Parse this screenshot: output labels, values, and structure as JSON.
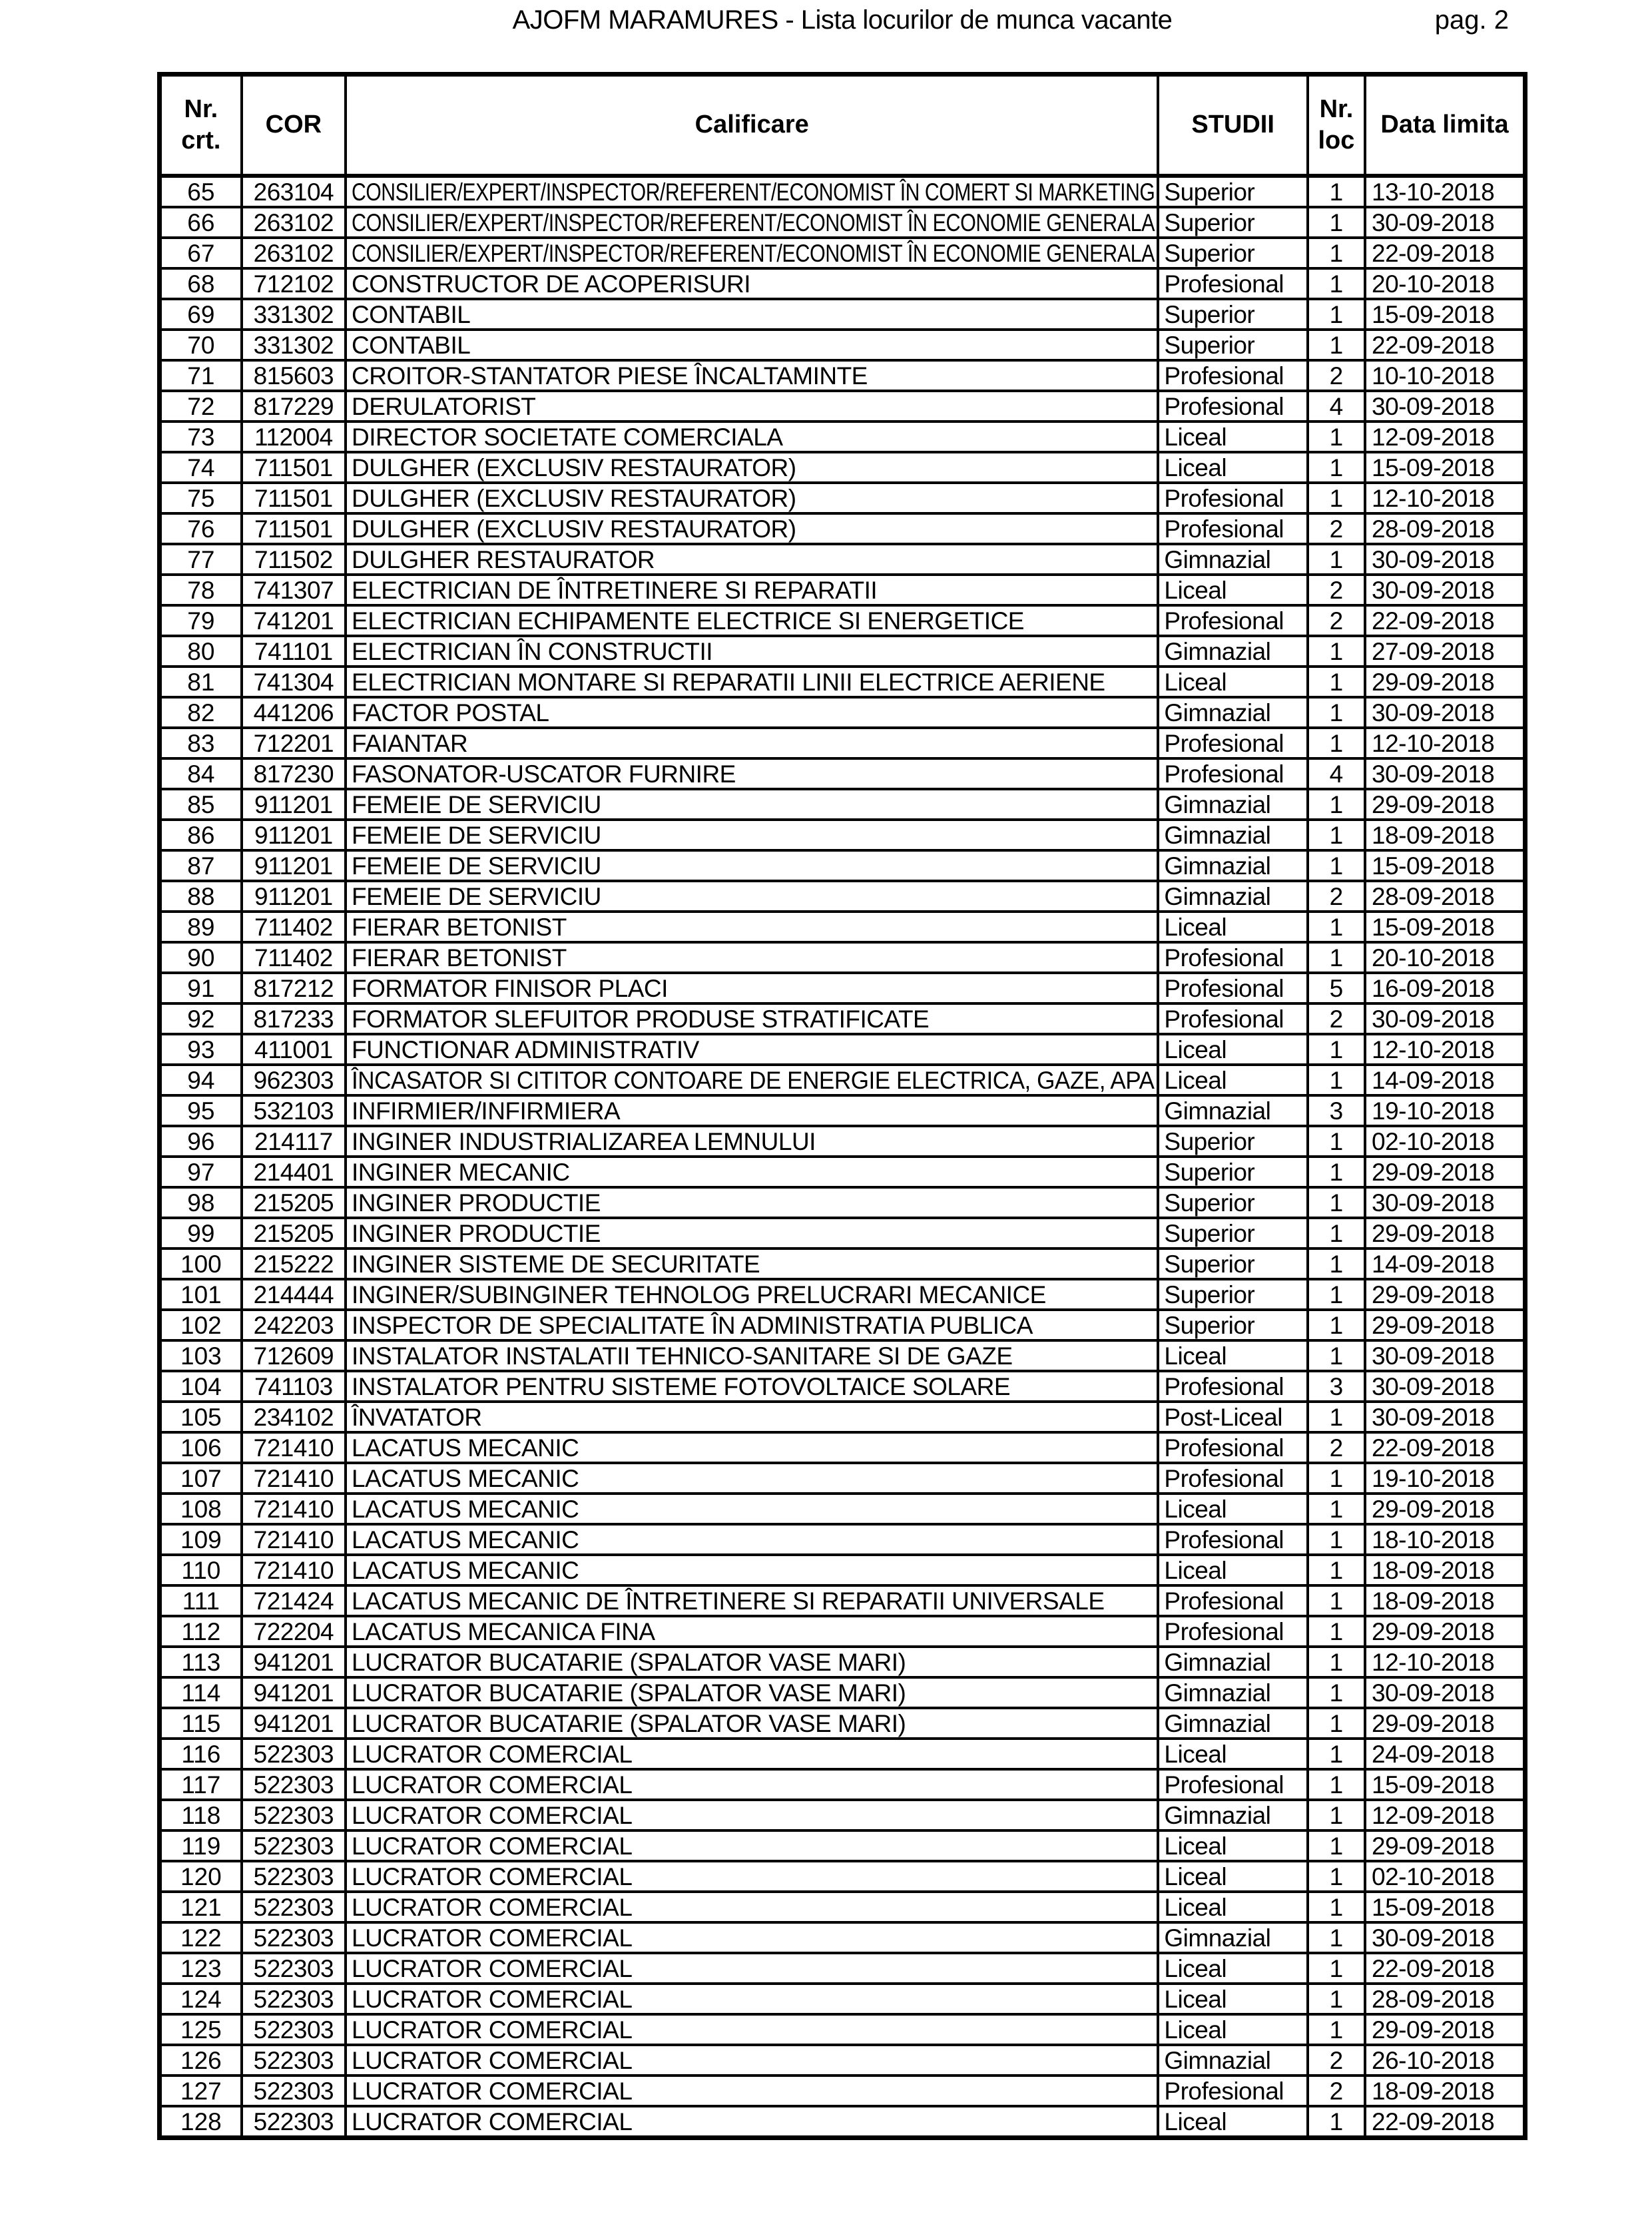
{
  "page": {
    "title": "AJOFM MARAMURES - Lista locurilor de munca vacante",
    "page_label": "pag. 2"
  },
  "table": {
    "columns": [
      "Nr. crt.",
      "COR",
      "Calificare",
      "STUDII",
      "Nr. loc",
      "Data limita"
    ],
    "rows": [
      {
        "nr": "65",
        "cor": "263104",
        "calificare": "CONSILIER/EXPERT/INSPECTOR/REFERENT/ECONOMIST ÎN COMERT SI MARKETING",
        "studii": "Superior",
        "loc": "1",
        "data": "13-10-2018"
      },
      {
        "nr": "66",
        "cor": "263102",
        "calificare": "CONSILIER/EXPERT/INSPECTOR/REFERENT/ECONOMIST ÎN ECONOMIE GENERALA",
        "studii": "Superior",
        "loc": "1",
        "data": "30-09-2018"
      },
      {
        "nr": "67",
        "cor": "263102",
        "calificare": "CONSILIER/EXPERT/INSPECTOR/REFERENT/ECONOMIST ÎN ECONOMIE GENERALA",
        "studii": "Superior",
        "loc": "1",
        "data": "22-09-2018"
      },
      {
        "nr": "68",
        "cor": "712102",
        "calificare": "CONSTRUCTOR DE ACOPERISURI",
        "studii": "Profesional",
        "loc": "1",
        "data": "20-10-2018"
      },
      {
        "nr": "69",
        "cor": "331302",
        "calificare": "CONTABIL",
        "studii": "Superior",
        "loc": "1",
        "data": "15-09-2018"
      },
      {
        "nr": "70",
        "cor": "331302",
        "calificare": "CONTABIL",
        "studii": "Superior",
        "loc": "1",
        "data": "22-09-2018"
      },
      {
        "nr": "71",
        "cor": "815603",
        "calificare": "CROITOR-STANTATOR PIESE ÎNCALTAMINTE",
        "studii": "Profesional",
        "loc": "2",
        "data": "10-10-2018"
      },
      {
        "nr": "72",
        "cor": "817229",
        "calificare": "DERULATORIST",
        "studii": "Profesional",
        "loc": "4",
        "data": "30-09-2018"
      },
      {
        "nr": "73",
        "cor": "112004",
        "calificare": "DIRECTOR SOCIETATE COMERCIALA",
        "studii": "Liceal",
        "loc": "1",
        "data": "12-09-2018"
      },
      {
        "nr": "74",
        "cor": "711501",
        "calificare": "DULGHER (EXCLUSIV RESTAURATOR)",
        "studii": "Liceal",
        "loc": "1",
        "data": "15-09-2018"
      },
      {
        "nr": "75",
        "cor": "711501",
        "calificare": "DULGHER (EXCLUSIV RESTAURATOR)",
        "studii": "Profesional",
        "loc": "1",
        "data": "12-10-2018"
      },
      {
        "nr": "76",
        "cor": "711501",
        "calificare": "DULGHER (EXCLUSIV RESTAURATOR)",
        "studii": "Profesional",
        "loc": "2",
        "data": "28-09-2018"
      },
      {
        "nr": "77",
        "cor": "711502",
        "calificare": "DULGHER RESTAURATOR",
        "studii": "Gimnazial",
        "loc": "1",
        "data": "30-09-2018"
      },
      {
        "nr": "78",
        "cor": "741307",
        "calificare": "ELECTRICIAN DE ÎNTRETINERE SI REPARATII",
        "studii": "Liceal",
        "loc": "2",
        "data": "30-09-2018"
      },
      {
        "nr": "79",
        "cor": "741201",
        "calificare": "ELECTRICIAN ECHIPAMENTE ELECTRICE SI ENERGETICE",
        "studii": "Profesional",
        "loc": "2",
        "data": "22-09-2018"
      },
      {
        "nr": "80",
        "cor": "741101",
        "calificare": "ELECTRICIAN ÎN CONSTRUCTII",
        "studii": "Gimnazial",
        "loc": "1",
        "data": "27-09-2018"
      },
      {
        "nr": "81",
        "cor": "741304",
        "calificare": "ELECTRICIAN MONTARE SI REPARATII LINII ELECTRICE AERIENE",
        "studii": "Liceal",
        "loc": "1",
        "data": "29-09-2018"
      },
      {
        "nr": "82",
        "cor": "441206",
        "calificare": "FACTOR POSTAL",
        "studii": "Gimnazial",
        "loc": "1",
        "data": "30-09-2018"
      },
      {
        "nr": "83",
        "cor": "712201",
        "calificare": "FAIANTAR",
        "studii": "Profesional",
        "loc": "1",
        "data": "12-10-2018"
      },
      {
        "nr": "84",
        "cor": "817230",
        "calificare": "FASONATOR-USCATOR FURNIRE",
        "studii": "Profesional",
        "loc": "4",
        "data": "30-09-2018"
      },
      {
        "nr": "85",
        "cor": "911201",
        "calificare": "FEMEIE DE SERVICIU",
        "studii": "Gimnazial",
        "loc": "1",
        "data": "29-09-2018"
      },
      {
        "nr": "86",
        "cor": "911201",
        "calificare": "FEMEIE DE SERVICIU",
        "studii": "Gimnazial",
        "loc": "1",
        "data": "18-09-2018"
      },
      {
        "nr": "87",
        "cor": "911201",
        "calificare": "FEMEIE DE SERVICIU",
        "studii": "Gimnazial",
        "loc": "1",
        "data": "15-09-2018"
      },
      {
        "nr": "88",
        "cor": "911201",
        "calificare": "FEMEIE DE SERVICIU",
        "studii": "Gimnazial",
        "loc": "2",
        "data": "28-09-2018"
      },
      {
        "nr": "89",
        "cor": "711402",
        "calificare": "FIERAR BETONIST",
        "studii": "Liceal",
        "loc": "1",
        "data": "15-09-2018"
      },
      {
        "nr": "90",
        "cor": "711402",
        "calificare": "FIERAR BETONIST",
        "studii": "Profesional",
        "loc": "1",
        "data": "20-10-2018"
      },
      {
        "nr": "91",
        "cor": "817212",
        "calificare": "FORMATOR FINISOR PLACI",
        "studii": "Profesional",
        "loc": "5",
        "data": "16-09-2018"
      },
      {
        "nr": "92",
        "cor": "817233",
        "calificare": "FORMATOR SLEFUITOR PRODUSE STRATIFICATE",
        "studii": "Profesional",
        "loc": "2",
        "data": "30-09-2018"
      },
      {
        "nr": "93",
        "cor": "411001",
        "calificare": "FUNCTIONAR ADMINISTRATIV",
        "studii": "Liceal",
        "loc": "1",
        "data": "12-10-2018"
      },
      {
        "nr": "94",
        "cor": "962303",
        "calificare": "ÎNCASATOR SI CITITOR CONTOARE DE ENERGIE ELECTRICA, GAZE, APA",
        "studii": "Liceal",
        "loc": "1",
        "data": "14-09-2018"
      },
      {
        "nr": "95",
        "cor": "532103",
        "calificare": "INFIRMIER/INFIRMIERA",
        "studii": "Gimnazial",
        "loc": "3",
        "data": "19-10-2018"
      },
      {
        "nr": "96",
        "cor": "214117",
        "calificare": "INGINER INDUSTRIALIZAREA LEMNULUI",
        "studii": "Superior",
        "loc": "1",
        "data": "02-10-2018"
      },
      {
        "nr": "97",
        "cor": "214401",
        "calificare": "INGINER MECANIC",
        "studii": "Superior",
        "loc": "1",
        "data": "29-09-2018"
      },
      {
        "nr": "98",
        "cor": "215205",
        "calificare": "INGINER PRODUCTIE",
        "studii": "Superior",
        "loc": "1",
        "data": "30-09-2018"
      },
      {
        "nr": "99",
        "cor": "215205",
        "calificare": "INGINER PRODUCTIE",
        "studii": "Superior",
        "loc": "1",
        "data": "29-09-2018"
      },
      {
        "nr": "100",
        "cor": "215222",
        "calificare": "INGINER SISTEME DE SECURITATE",
        "studii": "Superior",
        "loc": "1",
        "data": "14-09-2018"
      },
      {
        "nr": "101",
        "cor": "214444",
        "calificare": "INGINER/SUBINGINER TEHNOLOG PRELUCRARI MECANICE",
        "studii": "Superior",
        "loc": "1",
        "data": "29-09-2018"
      },
      {
        "nr": "102",
        "cor": "242203",
        "calificare": "INSPECTOR DE SPECIALITATE ÎN ADMINISTRATIA PUBLICA",
        "studii": "Superior",
        "loc": "1",
        "data": "29-09-2018"
      },
      {
        "nr": "103",
        "cor": "712609",
        "calificare": "INSTALATOR INSTALATII TEHNICO-SANITARE SI DE GAZE",
        "studii": "Liceal",
        "loc": "1",
        "data": "30-09-2018"
      },
      {
        "nr": "104",
        "cor": "741103",
        "calificare": "INSTALATOR PENTRU SISTEME FOTOVOLTAICE SOLARE",
        "studii": "Profesional",
        "loc": "3",
        "data": "30-09-2018"
      },
      {
        "nr": "105",
        "cor": "234102",
        "calificare": "ÎNVATATOR",
        "studii": "Post-Liceal",
        "loc": "1",
        "data": "30-09-2018"
      },
      {
        "nr": "106",
        "cor": "721410",
        "calificare": "LACATUS MECANIC",
        "studii": "Profesional",
        "loc": "2",
        "data": "22-09-2018"
      },
      {
        "nr": "107",
        "cor": "721410",
        "calificare": "LACATUS MECANIC",
        "studii": "Profesional",
        "loc": "1",
        "data": "19-10-2018"
      },
      {
        "nr": "108",
        "cor": "721410",
        "calificare": "LACATUS MECANIC",
        "studii": "Liceal",
        "loc": "1",
        "data": "29-09-2018"
      },
      {
        "nr": "109",
        "cor": "721410",
        "calificare": "LACATUS MECANIC",
        "studii": "Profesional",
        "loc": "1",
        "data": "18-10-2018"
      },
      {
        "nr": "110",
        "cor": "721410",
        "calificare": "LACATUS MECANIC",
        "studii": "Liceal",
        "loc": "1",
        "data": "18-09-2018"
      },
      {
        "nr": "111",
        "cor": "721424",
        "calificare": "LACATUS MECANIC DE ÎNTRETINERE SI REPARATII UNIVERSALE",
        "studii": "Profesional",
        "loc": "1",
        "data": "18-09-2018"
      },
      {
        "nr": "112",
        "cor": "722204",
        "calificare": "LACATUS MECANICA FINA",
        "studii": "Profesional",
        "loc": "1",
        "data": "29-09-2018"
      },
      {
        "nr": "113",
        "cor": "941201",
        "calificare": "LUCRATOR BUCATARIE (SPALATOR VASE MARI)",
        "studii": "Gimnazial",
        "loc": "1",
        "data": "12-10-2018"
      },
      {
        "nr": "114",
        "cor": "941201",
        "calificare": "LUCRATOR BUCATARIE (SPALATOR VASE MARI)",
        "studii": "Gimnazial",
        "loc": "1",
        "data": "30-09-2018"
      },
      {
        "nr": "115",
        "cor": "941201",
        "calificare": "LUCRATOR BUCATARIE (SPALATOR VASE MARI)",
        "studii": "Gimnazial",
        "loc": "1",
        "data": "29-09-2018"
      },
      {
        "nr": "116",
        "cor": "522303",
        "calificare": "LUCRATOR COMERCIAL",
        "studii": "Liceal",
        "loc": "1",
        "data": "24-09-2018"
      },
      {
        "nr": "117",
        "cor": "522303",
        "calificare": "LUCRATOR COMERCIAL",
        "studii": "Profesional",
        "loc": "1",
        "data": "15-09-2018"
      },
      {
        "nr": "118",
        "cor": "522303",
        "calificare": "LUCRATOR COMERCIAL",
        "studii": "Gimnazial",
        "loc": "1",
        "data": "12-09-2018"
      },
      {
        "nr": "119",
        "cor": "522303",
        "calificare": "LUCRATOR COMERCIAL",
        "studii": "Liceal",
        "loc": "1",
        "data": "29-09-2018"
      },
      {
        "nr": "120",
        "cor": "522303",
        "calificare": "LUCRATOR COMERCIAL",
        "studii": "Liceal",
        "loc": "1",
        "data": "02-10-2018"
      },
      {
        "nr": "121",
        "cor": "522303",
        "calificare": "LUCRATOR COMERCIAL",
        "studii": "Liceal",
        "loc": "1",
        "data": "15-09-2018"
      },
      {
        "nr": "122",
        "cor": "522303",
        "calificare": "LUCRATOR COMERCIAL",
        "studii": "Gimnazial",
        "loc": "1",
        "data": "30-09-2018"
      },
      {
        "nr": "123",
        "cor": "522303",
        "calificare": "LUCRATOR COMERCIAL",
        "studii": "Liceal",
        "loc": "1",
        "data": "22-09-2018"
      },
      {
        "nr": "124",
        "cor": "522303",
        "calificare": "LUCRATOR COMERCIAL",
        "studii": "Liceal",
        "loc": "1",
        "data": "28-09-2018"
      },
      {
        "nr": "125",
        "cor": "522303",
        "calificare": "LUCRATOR COMERCIAL",
        "studii": "Liceal",
        "loc": "1",
        "data": "29-09-2018"
      },
      {
        "nr": "126",
        "cor": "522303",
        "calificare": "LUCRATOR COMERCIAL",
        "studii": "Gimnazial",
        "loc": "2",
        "data": "26-10-2018"
      },
      {
        "nr": "127",
        "cor": "522303",
        "calificare": "LUCRATOR COMERCIAL",
        "studii": "Profesional",
        "loc": "2",
        "data": "18-09-2018"
      },
      {
        "nr": "128",
        "cor": "522303",
        "calificare": "LUCRATOR COMERCIAL",
        "studii": "Liceal",
        "loc": "1",
        "data": "22-09-2018"
      }
    ]
  }
}
